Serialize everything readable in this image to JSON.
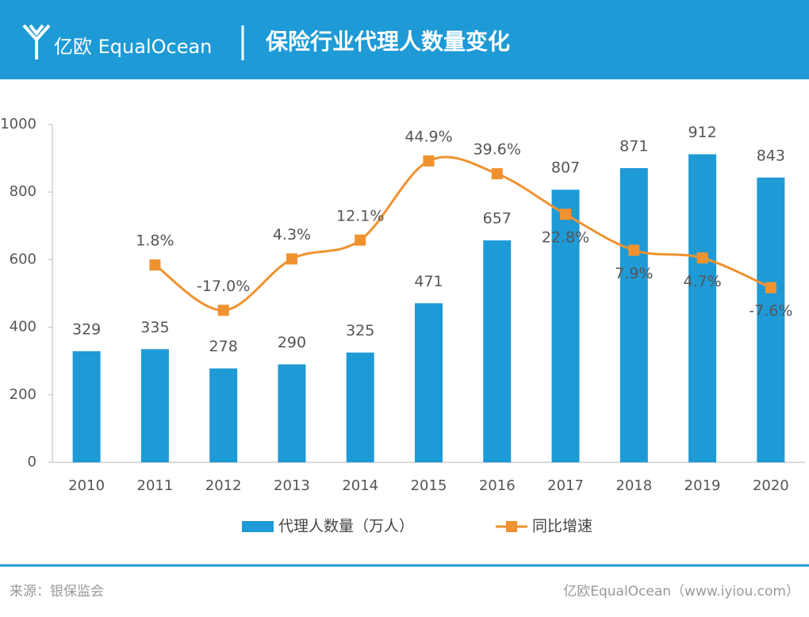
{
  "header": {
    "logo": "亿欧 EqualOcean"
  },
  "chart_data": {
    "type": "bar-line",
    "title": "保险行业代理人数量变化",
    "categories": [
      "2010",
      "2011",
      "2012",
      "2013",
      "2014",
      "2015",
      "2016",
      "2017",
      "2018",
      "2019",
      "2020"
    ],
    "series": [
      {
        "name": "代理人数量（万人）",
        "type": "bar",
        "color": "#1e9ad6",
        "values": [
          329,
          335,
          278,
          290,
          325,
          471,
          657,
          807,
          871,
          912,
          843
        ]
      },
      {
        "name": "同比增速",
        "type": "line",
        "axis": "y2",
        "color": "#f0922f",
        "values": [
          null,
          1.8,
          -17.0,
          4.3,
          12.1,
          44.9,
          39.6,
          22.8,
          7.9,
          4.7,
          -7.6
        ],
        "value_labels": [
          null,
          "1.8%",
          "-17.0%",
          "4.3%",
          "12.1%",
          "44.9%",
          "39.6%",
          "22.8%",
          "7.9%",
          "4.7%",
          "-7.6%"
        ]
      }
    ],
    "ylim": [
      0,
      1000
    ],
    "yticks": [
      0,
      200,
      400,
      600,
      800,
      1000
    ],
    "y2lim": [
      -80,
      60
    ],
    "grid": false,
    "legend": "bottom"
  },
  "footer": {
    "source": "来源：银保监会",
    "brand": "亿欧EqualOcean（www.iyiou.com）"
  }
}
